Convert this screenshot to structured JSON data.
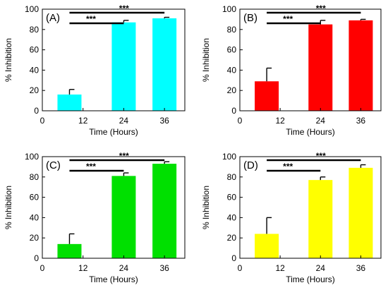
{
  "chart_data": [
    {
      "type": "bar",
      "panel_label": "(A)",
      "color": "#00ffff",
      "xlabel": "Time (Hours)",
      "ylabel": "% Inhibition",
      "xlim": [
        0,
        42
      ],
      "ylim": [
        0,
        100
      ],
      "xticks": [
        0,
        12,
        24,
        36
      ],
      "yticks": [
        0,
        20,
        40,
        60,
        80,
        100
      ],
      "x": [
        8,
        24,
        36
      ],
      "values": [
        16,
        87,
        91
      ],
      "errors": [
        5,
        2,
        1
      ],
      "significance": [
        {
          "from": 8,
          "to": 36,
          "label": "***"
        },
        {
          "from": 8,
          "to": 24,
          "label": "***"
        }
      ]
    },
    {
      "type": "bar",
      "panel_label": "(B)",
      "color": "#ff0000",
      "xlabel": "Time (Hours)",
      "ylabel": "% Inhibition",
      "xlim": [
        0,
        42
      ],
      "ylim": [
        0,
        100
      ],
      "xticks": [
        0,
        12,
        24,
        36
      ],
      "yticks": [
        0,
        20,
        40,
        60,
        80,
        100
      ],
      "x": [
        8,
        24,
        36
      ],
      "values": [
        29,
        85,
        89
      ],
      "errors": [
        13,
        4,
        1
      ],
      "significance": [
        {
          "from": 8,
          "to": 36,
          "label": "***"
        },
        {
          "from": 8,
          "to": 24,
          "label": "***"
        }
      ]
    },
    {
      "type": "bar",
      "panel_label": "(C)",
      "color": "#00e000",
      "xlabel": "Time (Hours)",
      "ylabel": "% Inhibition",
      "xlim": [
        0,
        42
      ],
      "ylim": [
        0,
        100
      ],
      "xticks": [
        0,
        12,
        24,
        36
      ],
      "yticks": [
        0,
        20,
        40,
        60,
        80,
        100
      ],
      "x": [
        8,
        24,
        36
      ],
      "values": [
        14,
        81,
        93
      ],
      "errors": [
        10,
        3,
        2
      ],
      "significance": [
        {
          "from": 8,
          "to": 36,
          "label": "***"
        },
        {
          "from": 8,
          "to": 24,
          "label": "***"
        }
      ]
    },
    {
      "type": "bar",
      "panel_label": "(D)",
      "color": "#ffff00",
      "xlabel": "Time (Hours)",
      "ylabel": "% Inhibition",
      "xlim": [
        0,
        42
      ],
      "ylim": [
        0,
        100
      ],
      "xticks": [
        0,
        12,
        24,
        36
      ],
      "yticks": [
        0,
        20,
        40,
        60,
        80,
        100
      ],
      "x": [
        8,
        24,
        36
      ],
      "values": [
        24,
        77,
        89
      ],
      "errors": [
        16,
        3,
        3
      ],
      "significance": [
        {
          "from": 8,
          "to": 36,
          "label": "***"
        },
        {
          "from": 8,
          "to": 24,
          "label": "***"
        }
      ]
    }
  ]
}
